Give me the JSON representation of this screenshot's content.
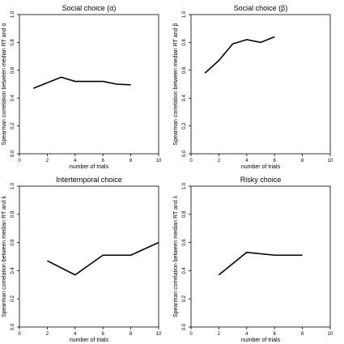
{
  "chart_data": [
    {
      "type": "line",
      "title": "Social choice (α)",
      "xlabel": "number of trials",
      "ylabel": "Spearman correlation between median RT and α",
      "xlim": [
        0,
        10
      ],
      "ylim": [
        0,
        1.0
      ],
      "xticks": [
        0,
        2,
        4,
        6,
        8,
        10
      ],
      "yticks": [
        0.0,
        0.2,
        0.4,
        0.6,
        0.8,
        1.0
      ],
      "ytick_labels": [
        "0.0",
        "0.2",
        "0.4",
        "0.6",
        "0.8",
        "1.0"
      ],
      "grid": false,
      "series": [
        {
          "x": [
            1,
            2,
            3,
            4,
            5,
            6,
            7,
            8
          ],
          "values": [
            0.47,
            0.51,
            0.55,
            0.52,
            0.52,
            0.52,
            0.5,
            0.495
          ]
        }
      ]
    },
    {
      "type": "line",
      "title": "Social choice (β)",
      "xlabel": "number of trials",
      "ylabel": "Spearman correlation between median RT and β",
      "xlim": [
        0,
        10
      ],
      "ylim": [
        0,
        1.0
      ],
      "xticks": [
        0,
        2,
        4,
        6,
        8,
        10
      ],
      "yticks": [
        0.0,
        0.2,
        0.4,
        0.6,
        0.8,
        1.0
      ],
      "ytick_labels": [
        "0.0",
        "0.2",
        "0.4",
        "0.6",
        "0.8",
        "1.0"
      ],
      "grid": false,
      "series": [
        {
          "x": [
            1,
            2,
            3,
            4,
            5,
            6
          ],
          "values": [
            0.58,
            0.67,
            0.79,
            0.82,
            0.8,
            0.84
          ]
        }
      ]
    },
    {
      "type": "line",
      "title": "Intertemporal choice",
      "xlabel": "number of trials",
      "ylabel": "Spearman correlation between median RT and k",
      "xlim": [
        0,
        10
      ],
      "ylim": [
        0,
        1.0
      ],
      "xticks": [
        0,
        2,
        4,
        6,
        8,
        10
      ],
      "yticks": [
        0.0,
        0.2,
        0.4,
        0.6,
        0.8,
        1.0
      ],
      "ytick_labels": [
        "0.0",
        "0.2",
        "0.4",
        "0.6",
        "0.8",
        "1.0"
      ],
      "grid": false,
      "series": [
        {
          "x": [
            2,
            4,
            6,
            8,
            10
          ],
          "values": [
            0.47,
            0.37,
            0.51,
            0.51,
            0.6
          ]
        }
      ]
    },
    {
      "type": "line",
      "title": "Risky choice",
      "xlabel": "number of trials",
      "ylabel": "Spearman correlation between median RT and λ",
      "xlim": [
        0,
        10
      ],
      "ylim": [
        0,
        1.0
      ],
      "xticks": [
        0,
        2,
        4,
        6,
        8,
        10
      ],
      "yticks": [
        0.0,
        0.2,
        0.4,
        0.6,
        0.8,
        1.0
      ],
      "ytick_labels": [
        "0.0",
        "0.2",
        "0.4",
        "0.6",
        "0.8",
        "1.0"
      ],
      "grid": false,
      "series": [
        {
          "x": [
            2,
            4,
            6,
            8
          ],
          "values": [
            0.37,
            0.53,
            0.51,
            0.51
          ]
        }
      ]
    }
  ]
}
